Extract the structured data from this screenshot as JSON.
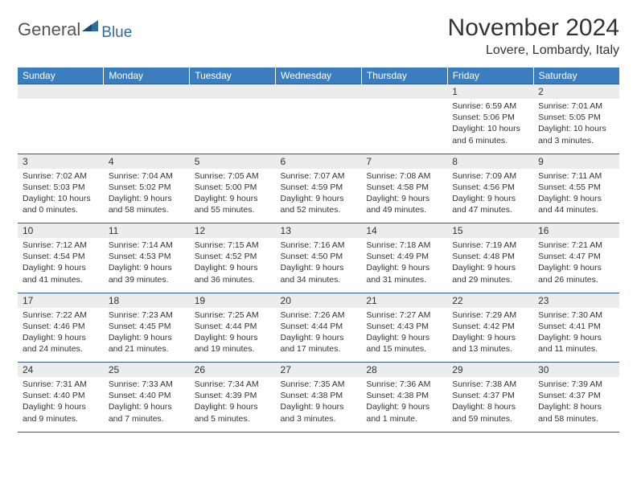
{
  "logo": {
    "general": "General",
    "blue": "Blue"
  },
  "title": "November 2024",
  "location": "Lovere, Lombardy, Italy",
  "colors": {
    "header_bg": "#3a7ebf",
    "header_text": "#ffffff",
    "daynum_bg": "#ececec",
    "border": "#2e5a8a",
    "logo_blue": "#2e6ca4"
  },
  "weekdays": [
    "Sunday",
    "Monday",
    "Tuesday",
    "Wednesday",
    "Thursday",
    "Friday",
    "Saturday"
  ],
  "weeks": [
    [
      null,
      null,
      null,
      null,
      null,
      {
        "n": "1",
        "sr": "6:59 AM",
        "ss": "5:06 PM",
        "dl": "10 hours and 6 minutes."
      },
      {
        "n": "2",
        "sr": "7:01 AM",
        "ss": "5:05 PM",
        "dl": "10 hours and 3 minutes."
      }
    ],
    [
      {
        "n": "3",
        "sr": "7:02 AM",
        "ss": "5:03 PM",
        "dl": "10 hours and 0 minutes."
      },
      {
        "n": "4",
        "sr": "7:04 AM",
        "ss": "5:02 PM",
        "dl": "9 hours and 58 minutes."
      },
      {
        "n": "5",
        "sr": "7:05 AM",
        "ss": "5:00 PM",
        "dl": "9 hours and 55 minutes."
      },
      {
        "n": "6",
        "sr": "7:07 AM",
        "ss": "4:59 PM",
        "dl": "9 hours and 52 minutes."
      },
      {
        "n": "7",
        "sr": "7:08 AM",
        "ss": "4:58 PM",
        "dl": "9 hours and 49 minutes."
      },
      {
        "n": "8",
        "sr": "7:09 AM",
        "ss": "4:56 PM",
        "dl": "9 hours and 47 minutes."
      },
      {
        "n": "9",
        "sr": "7:11 AM",
        "ss": "4:55 PM",
        "dl": "9 hours and 44 minutes."
      }
    ],
    [
      {
        "n": "10",
        "sr": "7:12 AM",
        "ss": "4:54 PM",
        "dl": "9 hours and 41 minutes."
      },
      {
        "n": "11",
        "sr": "7:14 AM",
        "ss": "4:53 PM",
        "dl": "9 hours and 39 minutes."
      },
      {
        "n": "12",
        "sr": "7:15 AM",
        "ss": "4:52 PM",
        "dl": "9 hours and 36 minutes."
      },
      {
        "n": "13",
        "sr": "7:16 AM",
        "ss": "4:50 PM",
        "dl": "9 hours and 34 minutes."
      },
      {
        "n": "14",
        "sr": "7:18 AM",
        "ss": "4:49 PM",
        "dl": "9 hours and 31 minutes."
      },
      {
        "n": "15",
        "sr": "7:19 AM",
        "ss": "4:48 PM",
        "dl": "9 hours and 29 minutes."
      },
      {
        "n": "16",
        "sr": "7:21 AM",
        "ss": "4:47 PM",
        "dl": "9 hours and 26 minutes."
      }
    ],
    [
      {
        "n": "17",
        "sr": "7:22 AM",
        "ss": "4:46 PM",
        "dl": "9 hours and 24 minutes."
      },
      {
        "n": "18",
        "sr": "7:23 AM",
        "ss": "4:45 PM",
        "dl": "9 hours and 21 minutes."
      },
      {
        "n": "19",
        "sr": "7:25 AM",
        "ss": "4:44 PM",
        "dl": "9 hours and 19 minutes."
      },
      {
        "n": "20",
        "sr": "7:26 AM",
        "ss": "4:44 PM",
        "dl": "9 hours and 17 minutes."
      },
      {
        "n": "21",
        "sr": "7:27 AM",
        "ss": "4:43 PM",
        "dl": "9 hours and 15 minutes."
      },
      {
        "n": "22",
        "sr": "7:29 AM",
        "ss": "4:42 PM",
        "dl": "9 hours and 13 minutes."
      },
      {
        "n": "23",
        "sr": "7:30 AM",
        "ss": "4:41 PM",
        "dl": "9 hours and 11 minutes."
      }
    ],
    [
      {
        "n": "24",
        "sr": "7:31 AM",
        "ss": "4:40 PM",
        "dl": "9 hours and 9 minutes."
      },
      {
        "n": "25",
        "sr": "7:33 AM",
        "ss": "4:40 PM",
        "dl": "9 hours and 7 minutes."
      },
      {
        "n": "26",
        "sr": "7:34 AM",
        "ss": "4:39 PM",
        "dl": "9 hours and 5 minutes."
      },
      {
        "n": "27",
        "sr": "7:35 AM",
        "ss": "4:38 PM",
        "dl": "9 hours and 3 minutes."
      },
      {
        "n": "28",
        "sr": "7:36 AM",
        "ss": "4:38 PM",
        "dl": "9 hours and 1 minute."
      },
      {
        "n": "29",
        "sr": "7:38 AM",
        "ss": "4:37 PM",
        "dl": "8 hours and 59 minutes."
      },
      {
        "n": "30",
        "sr": "7:39 AM",
        "ss": "4:37 PM",
        "dl": "8 hours and 58 minutes."
      }
    ]
  ],
  "labels": {
    "sunrise": "Sunrise:",
    "sunset": "Sunset:",
    "daylight": "Daylight:"
  }
}
